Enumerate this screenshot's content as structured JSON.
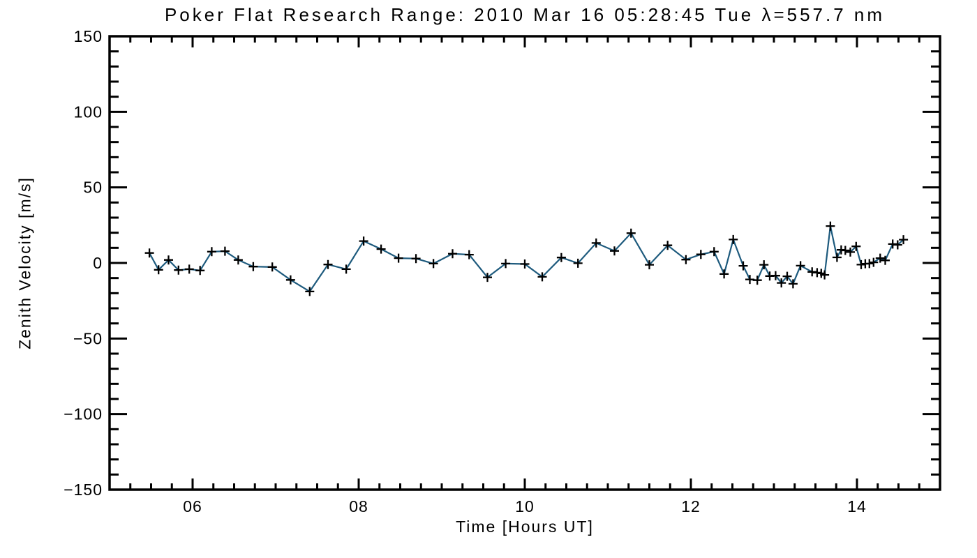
{
  "chart_data": {
    "type": "line",
    "title": "Poker Flat Research Range: 2010 Mar 16 05:28:45 Tue λ=557.7 nm",
    "xlabel": "Time [Hours UT]",
    "ylabel": "Zenith Velocity [m/s]",
    "xlim": [
      5,
      15
    ],
    "ylim": [
      -150,
      150
    ],
    "x_major_ticks": [
      6,
      8,
      10,
      12,
      14
    ],
    "x_tick_labels": [
      "06",
      "08",
      "10",
      "12",
      "14"
    ],
    "x_minor_step": 0.25,
    "y_major_ticks": [
      -150,
      -100,
      -50,
      0,
      50,
      100,
      150
    ],
    "y_tick_labels": [
      "−150",
      "−100",
      "−50",
      "0",
      "50",
      "100",
      "150"
    ],
    "y_minor_step": 10,
    "grid": false,
    "legend": "none",
    "line_color": "#1d5a7d",
    "marker": "plus",
    "marker_color": "#000000",
    "axis_color": "#000000",
    "background": "#ffffff",
    "series": [
      {
        "name": "zenith-velocity",
        "x": [
          5.48,
          5.59,
          5.71,
          5.83,
          5.96,
          6.09,
          6.23,
          6.39,
          6.55,
          6.73,
          6.96,
          7.18,
          7.41,
          7.63,
          7.85,
          8.06,
          8.27,
          8.48,
          8.69,
          8.9,
          9.13,
          9.33,
          9.55,
          9.77,
          10.0,
          10.21,
          10.44,
          10.64,
          10.86,
          11.08,
          11.28,
          11.5,
          11.72,
          11.94,
          12.12,
          12.28,
          12.4,
          12.51,
          12.63,
          12.71,
          12.8,
          12.88,
          12.95,
          13.02,
          13.09,
          13.16,
          13.23,
          13.32,
          13.46,
          13.52,
          13.57,
          13.61,
          13.68,
          13.76,
          13.81,
          13.86,
          13.92,
          13.99,
          14.05,
          14.1,
          14.15,
          14.2,
          14.28,
          14.34,
          14.43,
          14.49,
          14.56
        ],
        "y": [
          6.6,
          -4.5,
          2.0,
          -4.7,
          -4.1,
          -5.0,
          7.5,
          7.8,
          2.0,
          -2.4,
          -2.7,
          -11.2,
          -18.9,
          -1.0,
          -4.1,
          14.5,
          9.2,
          3.2,
          2.9,
          -0.4,
          6.1,
          5.5,
          -9.5,
          -0.4,
          -0.7,
          -9.2,
          3.6,
          -0.2,
          13.2,
          8.0,
          19.7,
          -1.2,
          11.7,
          2.2,
          5.7,
          7.5,
          -7.3,
          15.5,
          -1.9,
          -10.9,
          -11.4,
          -1.2,
          -8.7,
          -8.4,
          -13.2,
          -8.8,
          -13.8,
          -1.8,
          -5.9,
          -6.4,
          -6.9,
          -7.9,
          24.4,
          3.7,
          8.7,
          8.3,
          7.2,
          11.0,
          -1.1,
          -0.5,
          -0.4,
          0.4,
          3.2,
          1.7,
          12.5,
          12.0,
          15.4
        ]
      }
    ]
  }
}
